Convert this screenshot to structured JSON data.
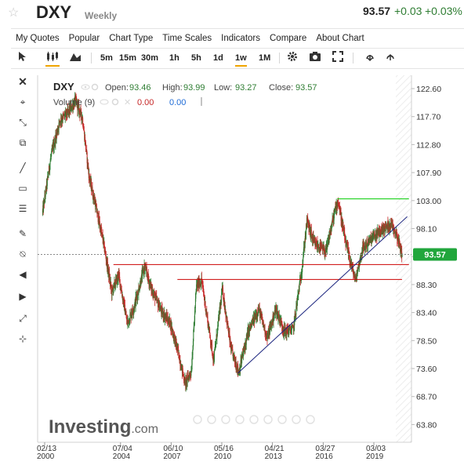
{
  "header": {
    "ticker": "DXY",
    "period": "Weekly",
    "price": "93.57",
    "change": "+0.03",
    "change_pct": "+0.03%",
    "star_icon": "star-icon"
  },
  "menu": [
    "My Quotes",
    "Popular",
    "Chart Type",
    "Time Scales",
    "Indicators",
    "Compare",
    "About Chart"
  ],
  "timeframes": [
    "5m",
    "15m",
    "30m",
    "1h",
    "5h",
    "1d",
    "1w",
    "1M"
  ],
  "active_timeframe": "1w",
  "toolbar_icons": [
    "cursor-icon",
    "candlestick-icon",
    "area-chart-icon",
    "settings-icon",
    "camera-icon",
    "fullscreen-icon",
    "download-icon",
    "upload-icon"
  ],
  "left_tools": [
    "close-icon",
    "crosshair-icon",
    "trend-tools-icon",
    "pattern-icon",
    "line-icon",
    "rectangle-icon",
    "fibonacci-icon",
    "brush-icon",
    "text-icon",
    "volume-icon",
    "arrow-left-icon",
    "measure-icon",
    "magnet-icon"
  ],
  "legend": {
    "symbol": "DXY",
    "open_label": "Open:",
    "open": "93.46",
    "high_label": "High:",
    "high": "93.99",
    "low_label": "Low:",
    "low": "93.27",
    "close_label": "Close:",
    "close": "93.57",
    "volume_label": "Volume (9)",
    "volume_val1": "0.00",
    "volume_val2": "0.00"
  },
  "watermark": {
    "brand": "Investing",
    "suffix": ".com"
  },
  "colors": {
    "up": "#2e7d32",
    "down": "#c62828",
    "support": "#cc0000",
    "resistance": "#00cc00",
    "trendline": "#1a237e",
    "current_price_bg": "#21a63c"
  },
  "chart_data": {
    "type": "candlestick",
    "title": "DXY Weekly",
    "y_ticks": [
      "122.60",
      "117.70",
      "112.80",
      "107.90",
      "103.00",
      "98.10",
      "93.20",
      "88.30",
      "83.40",
      "78.50",
      "73.60",
      "68.70",
      "63.80"
    ],
    "ylim": [
      63.8,
      122.6
    ],
    "x_ticks": [
      {
        "label": "02/13",
        "year": "2000",
        "t": 2000.12
      },
      {
        "label": "07/04",
        "year": "2004",
        "t": 2004.51
      },
      {
        "label": "06/10",
        "year": "2007",
        "t": 2007.44
      },
      {
        "label": "05/16",
        "year": "2010",
        "t": 2010.37
      },
      {
        "label": "04/21",
        "year": "2013",
        "t": 2013.3
      },
      {
        "label": "03/27",
        "year": "2016",
        "t": 2016.24
      },
      {
        "label": "03/03",
        "year": "2019",
        "t": 2019.17
      }
    ],
    "xlim": [
      2000.0,
      2021.2
    ],
    "current_price": "93.57",
    "anchors": [
      {
        "t": 2000.0,
        "v": 101.0
      },
      {
        "t": 2000.5,
        "v": 111.0
      },
      {
        "t": 2001.0,
        "v": 117.0
      },
      {
        "t": 2001.5,
        "v": 118.5
      },
      {
        "t": 2001.9,
        "v": 120.5
      },
      {
        "t": 2002.3,
        "v": 117.5
      },
      {
        "t": 2002.7,
        "v": 107.0
      },
      {
        "t": 2003.0,
        "v": 103.0
      },
      {
        "t": 2003.5,
        "v": 96.0
      },
      {
        "t": 2004.0,
        "v": 87.0
      },
      {
        "t": 2004.4,
        "v": 90.0
      },
      {
        "t": 2004.9,
        "v": 81.5
      },
      {
        "t": 2005.3,
        "v": 84.5
      },
      {
        "t": 2005.9,
        "v": 91.5
      },
      {
        "t": 2006.3,
        "v": 87.5
      },
      {
        "t": 2006.9,
        "v": 83.5
      },
      {
        "t": 2007.4,
        "v": 81.5
      },
      {
        "t": 2007.8,
        "v": 77.0
      },
      {
        "t": 2008.25,
        "v": 71.0
      },
      {
        "t": 2008.6,
        "v": 73.0
      },
      {
        "t": 2008.9,
        "v": 88.0
      },
      {
        "t": 2009.2,
        "v": 89.0
      },
      {
        "t": 2009.9,
        "v": 75.0
      },
      {
        "t": 2010.4,
        "v": 87.5
      },
      {
        "t": 2010.9,
        "v": 77.0
      },
      {
        "t": 2011.35,
        "v": 73.0
      },
      {
        "t": 2011.9,
        "v": 80.0
      },
      {
        "t": 2012.5,
        "v": 84.0
      },
      {
        "t": 2013.0,
        "v": 79.0
      },
      {
        "t": 2013.5,
        "v": 84.0
      },
      {
        "t": 2014.0,
        "v": 80.0
      },
      {
        "t": 2014.5,
        "v": 80.5
      },
      {
        "t": 2015.0,
        "v": 91.0
      },
      {
        "t": 2015.3,
        "v": 99.5
      },
      {
        "t": 2015.7,
        "v": 95.5
      },
      {
        "t": 2016.4,
        "v": 94.0
      },
      {
        "t": 2016.9,
        "v": 101.0
      },
      {
        "t": 2017.1,
        "v": 103.0
      },
      {
        "t": 2017.5,
        "v": 96.0
      },
      {
        "t": 2018.1,
        "v": 89.0
      },
      {
        "t": 2018.5,
        "v": 94.5
      },
      {
        "t": 2019.1,
        "v": 96.5
      },
      {
        "t": 2019.7,
        "v": 98.0
      },
      {
        "t": 2020.2,
        "v": 99.0
      },
      {
        "t": 2020.5,
        "v": 97.0
      },
      {
        "t": 2020.8,
        "v": 93.57
      }
    ],
    "annotations": [
      {
        "type": "horizontal",
        "color": "#00cc00",
        "v": 103.3,
        "t_start": 2017.05,
        "t_end": 2021.2
      },
      {
        "type": "horizontal",
        "color": "#cc0000",
        "v": 91.8,
        "t_start": 2004.1,
        "t_end": 2021.2
      },
      {
        "type": "horizontal",
        "color": "#cc0000",
        "v": 89.2,
        "t_start": 2007.8,
        "t_end": 2020.8
      },
      {
        "type": "trendline",
        "color": "#1a237e",
        "t1": 2011.3,
        "v1": 72.8,
        "t2": 2021.1,
        "v2": 100.2
      }
    ]
  }
}
